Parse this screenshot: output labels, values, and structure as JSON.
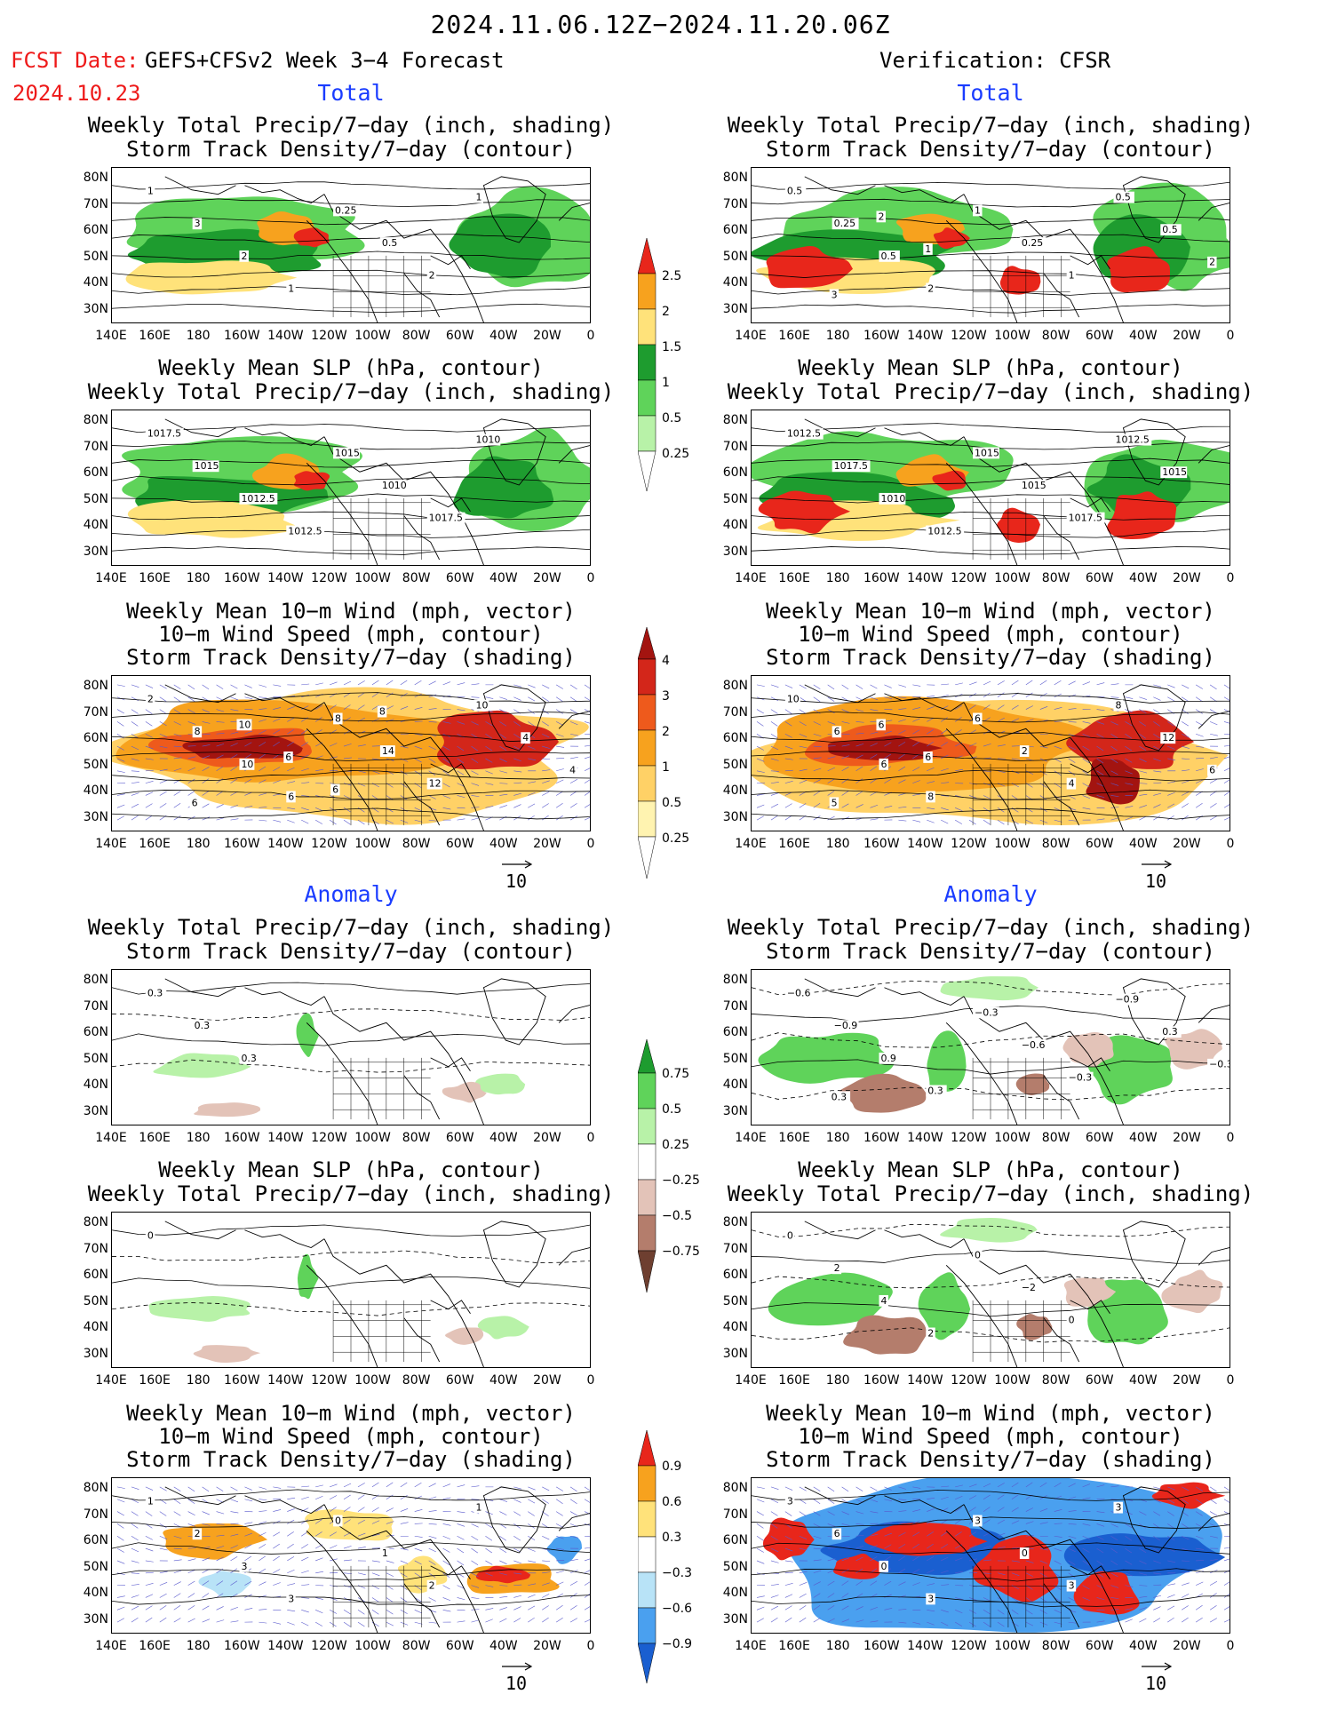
{
  "header": {
    "period": "2024.11.06.12Z−2024.11.20.06Z",
    "fcst_date_label": "FCST Date:",
    "forecast_source": "GEFS+CFSv2 Week 3−4 Forecast",
    "fcst_date": "2024.10.23",
    "verification": "Verification: CFSR"
  },
  "sections": {
    "total": "Total",
    "anomaly": "Anomaly"
  },
  "titles": {
    "precip_storm": [
      "Weekly Total Precip/7−day (inch, shading)",
      "Storm Track Density/7−day (contour)"
    ],
    "slp_precip": [
      "Weekly Mean SLP (hPa, contour)",
      "Weekly Total Precip/7−day (inch, shading)"
    ],
    "wind": [
      "Weekly Mean 10−m Wind (mph, vector)",
      "10−m Wind Speed (mph, contour)",
      "Storm Track Density/7−day (shading)"
    ]
  },
  "axes": {
    "lat_labels": [
      "80N",
      "70N",
      "60N",
      "50N",
      "40N",
      "30N"
    ],
    "lon_labels": [
      "140E",
      "160E",
      "180",
      "160W",
      "140W",
      "120W",
      "100W",
      "80W",
      "60W",
      "40W",
      "20W",
      "0"
    ]
  },
  "vector_reference": "10",
  "colorbars": {
    "precip_total": {
      "labels": [
        "2.5",
        "2",
        "1.5",
        "1",
        "0.5",
        "0.25"
      ],
      "colors": [
        "#e8261b",
        "#f7a21e",
        "#ffe27a",
        "#1e9c2f",
        "#5fd35a",
        "#b8f2a8"
      ]
    },
    "storm_total": {
      "labels": [
        "4",
        "3",
        "2",
        "1",
        "0.5",
        "0.25"
      ],
      "colors": [
        "#a31410",
        "#d3261a",
        "#ee5a1c",
        "#f7a21e",
        "#ffd166",
        "#fff3b0"
      ]
    },
    "precip_anom": {
      "labels": [
        "0.75",
        "0.5",
        "0.25",
        "−0.25",
        "−0.5",
        "−0.75"
      ],
      "colors": [
        "#1e9c2f",
        "#5fd35a",
        "#b8f2a8",
        "#ffffff",
        "#e3c3b8",
        "#b47d6c",
        "#6e3f30"
      ]
    },
    "storm_anom": {
      "labels": [
        "0.9",
        "0.6",
        "0.3",
        "−0.3",
        "−0.6",
        "−0.9"
      ],
      "colors": [
        "#e8261b",
        "#f7a21e",
        "#ffe27a",
        "#ffffff",
        "#b8e3f7",
        "#4aa0ef",
        "#1a5fd0"
      ]
    }
  },
  "contour_labels": {
    "p1": [
      "1",
      "3",
      "2",
      "1",
      "0.25",
      "0.5",
      "2",
      "1"
    ],
    "p2": [
      "0.5",
      "0.25",
      "0.5",
      "2",
      "1",
      "0.25",
      "1",
      "0.5",
      "0.5",
      "2",
      "3",
      "2",
      "1"
    ],
    "p3": [
      "1017.5",
      "1015",
      "1012.5",
      "1012.5",
      "1015",
      "1010",
      "1017.5",
      "1010"
    ],
    "p4": [
      "1012.5",
      "1017.5",
      "1010",
      "1012.5",
      "1015",
      "1015",
      "1017.5",
      "1012.5",
      "1015"
    ],
    "p5": [
      "2",
      "8",
      "10",
      "6",
      "8",
      "14",
      "12",
      "10",
      "4",
      "4",
      "6",
      "10",
      "6",
      "6",
      "8"
    ],
    "p6": [
      "10",
      "6",
      "6",
      "8",
      "6",
      "2",
      "4",
      "8",
      "12",
      "6",
      "5",
      "6",
      "6"
    ],
    "p7": [
      "0.3",
      "0.3",
      "0.3"
    ],
    "p8": [
      "−0.6",
      "−0.9",
      "0.9",
      "0.3",
      "−0.3",
      "−0.6",
      "−0.3",
      "−0.9",
      "0.3",
      "−0.3",
      "0.3"
    ],
    "p9": [
      "0"
    ],
    "p10": [
      "0",
      "2",
      "4",
      "2",
      "0",
      "−2",
      "0"
    ],
    "p11": [
      "1",
      "2",
      "3",
      "3",
      "0",
      "1",
      "2",
      "1"
    ],
    "p12": [
      "3",
      "6",
      "0",
      "3",
      "3",
      "0",
      "3",
      "3"
    ]
  }
}
